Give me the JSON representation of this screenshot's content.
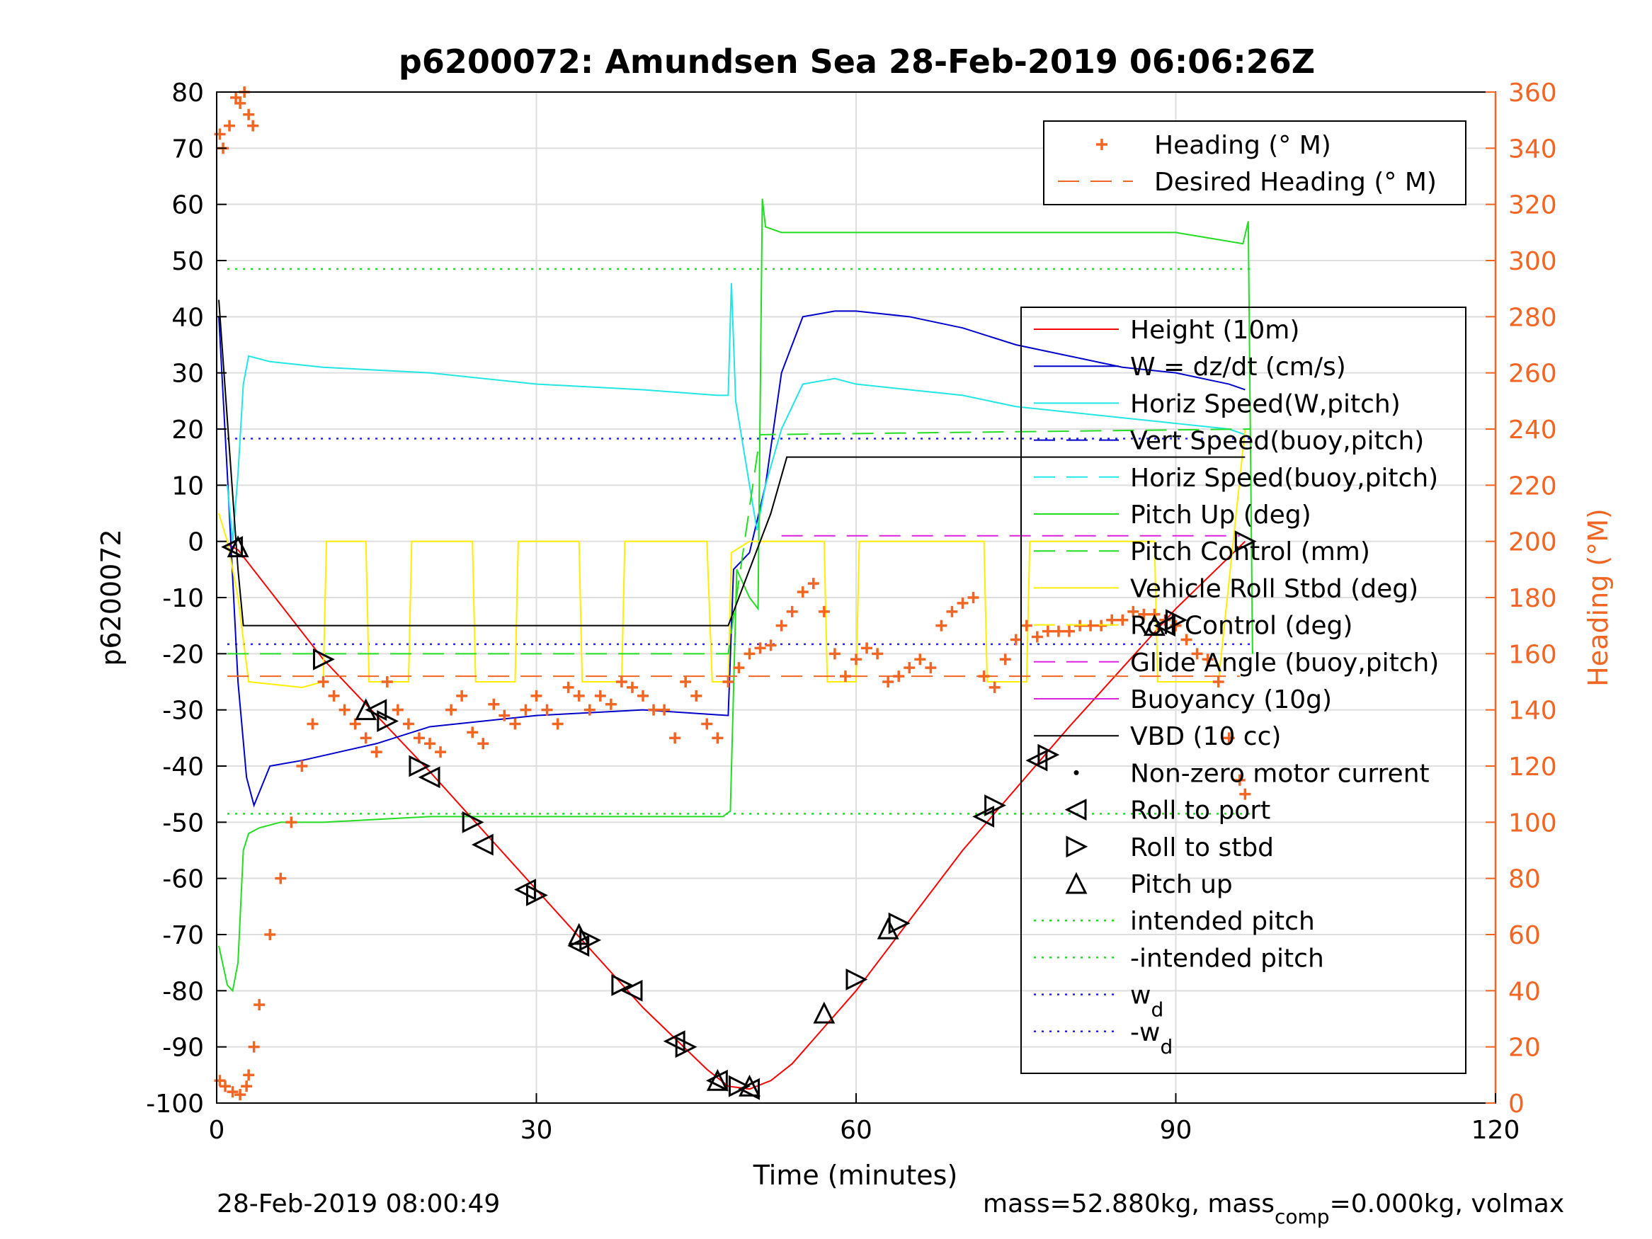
{
  "chart_data": {
    "type": "line",
    "title": "p6200072: Amundsen Sea 28-Feb-2019 06:06:26Z",
    "xlabel": "Time (minutes)",
    "ylabel": "p6200072",
    "y2label": "Heading (°M)",
    "xlim": [
      0,
      120
    ],
    "ylim": [
      -100,
      80
    ],
    "y2lim": [
      0,
      360
    ],
    "x_ticks": [
      0,
      30,
      60,
      90,
      120
    ],
    "y_ticks": [
      80,
      70,
      60,
      50,
      40,
      30,
      20,
      10,
      0,
      -10,
      -20,
      -30,
      -40,
      -50,
      -60,
      -70,
      -80,
      -90,
      -100
    ],
    "y2_ticks": [
      360,
      340,
      320,
      300,
      280,
      260,
      240,
      220,
      200,
      180,
      160,
      140,
      120,
      100,
      80,
      60,
      40,
      20,
      0
    ],
    "grid": true,
    "footer_left": "28-Feb-2019 08:00:49",
    "footer_right_a": "mass=52.880kg, mass",
    "footer_right_sub": "comp",
    "footer_right_b": "=0.000kg, volmax",
    "legend_top": [
      {
        "name": "Heading (° M)",
        "color": "#f26522",
        "style": "plus"
      },
      {
        "name": "Desired Heading (° M)",
        "color": "#f26522",
        "style": "dashed"
      }
    ],
    "legend_main": [
      {
        "name": "Height (10m)",
        "color": "#ff0000",
        "style": "solid"
      },
      {
        "name": "W = dz/dt (cm/s)",
        "color": "#0000cc",
        "style": "solid"
      },
      {
        "name": "Horiz Speed(W,pitch)",
        "color": "#22e5e5",
        "style": "solid"
      },
      {
        "name": "Vert Speed(buoy,pitch)",
        "color": "#0000cc",
        "style": "dashed"
      },
      {
        "name": "Horiz Speed(buoy,pitch)",
        "color": "#22e5e5",
        "style": "dashed"
      },
      {
        "name": "Pitch Up (deg)",
        "color": "#22dd22",
        "style": "solid"
      },
      {
        "name": "Pitch Control (mm)",
        "color": "#22dd22",
        "style": "dashed"
      },
      {
        "name": "Vehicle Roll Stbd (deg)",
        "color": "#ffee00",
        "style": "solid"
      },
      {
        "name": "Roll Control (deg)",
        "color": "#ffee00",
        "style": "dashed"
      },
      {
        "name": "Glide Angle (buoy,pitch)",
        "color": "#dd22dd",
        "style": "dashed"
      },
      {
        "name": "Buoyancy (10g)",
        "color": "#dd22dd",
        "style": "solid"
      },
      {
        "name": "VBD (10 cc)",
        "color": "#000000",
        "style": "solid"
      },
      {
        "name": "Non-zero motor current",
        "color": "#000000",
        "style": "dot"
      },
      {
        "name": "Roll to port",
        "color": "#000000",
        "style": "tri-left"
      },
      {
        "name": "Roll to stbd",
        "color": "#000000",
        "style": "tri-right"
      },
      {
        "name": "Pitch up",
        "color": "#000000",
        "style": "tri-up"
      },
      {
        "name": "intended pitch",
        "color": "#22dd22",
        "style": "dotted"
      },
      {
        "name": "-intended pitch",
        "color": "#22dd22",
        "style": "dotted"
      },
      {
        "name": "w",
        "sub": "d",
        "color": "#2222ee",
        "style": "dotted"
      },
      {
        "name": "-w",
        "sub": "d",
        "color": "#2222ee",
        "style": "dotted"
      }
    ],
    "reference_lines": [
      {
        "name": "intended pitch",
        "y": 48.5,
        "color": "#22dd22"
      },
      {
        "name": "-intended pitch",
        "y": -48.5,
        "color": "#22dd22"
      },
      {
        "name": "w_d",
        "y": 18.3,
        "color": "#2222ee"
      },
      {
        "name": "-w_d",
        "y": -18.3,
        "color": "#2222ee"
      }
    ],
    "series": [
      {
        "name": "Height (10m)",
        "color": "#ff0000",
        "x": [
          1,
          2,
          10,
          20,
          30,
          40,
          46,
          48,
          50,
          52,
          54,
          60,
          70,
          80,
          90,
          96.5
        ],
        "y": [
          -0.5,
          -1.5,
          -21,
          -41,
          -62,
          -83,
          -94,
          -97,
          -97.5,
          -96,
          -93,
          -80,
          -55,
          -33,
          -12,
          0
        ]
      },
      {
        "name": "W = dz/dt (cm/s)",
        "color": "#0000cc",
        "x": [
          0.2,
          1,
          2,
          2.8,
          3.5,
          5,
          8,
          15,
          20,
          30,
          40,
          48,
          48.5,
          50,
          51.5,
          53,
          55,
          58,
          60,
          65,
          70,
          75,
          80,
          85,
          90,
          95,
          96.5
        ],
        "y": [
          40,
          12,
          -25,
          -42,
          -47,
          -40,
          -39,
          -36,
          -33,
          -31,
          -30,
          -31,
          -5,
          -2,
          10,
          30,
          40,
          41,
          41,
          40,
          38,
          35,
          33,
          31,
          30,
          28,
          27
        ]
      },
      {
        "name": "Horiz Speed(W,pitch)",
        "color": "#22e5e5",
        "x": [
          1,
          1.5,
          2,
          2.5,
          3,
          5,
          10,
          20,
          30,
          40,
          47,
          48,
          48.3,
          48.7,
          50,
          50.7,
          51.5,
          53,
          55,
          58,
          60,
          65,
          70,
          75,
          80,
          85,
          90,
          95,
          96.5
        ],
        "y": [
          10,
          0,
          12,
          28,
          33,
          32,
          31,
          30,
          28,
          27,
          26,
          26,
          46,
          25,
          10,
          2,
          10,
          20,
          28,
          29,
          28,
          27,
          26,
          24,
          23,
          22,
          21,
          20,
          19
        ]
      },
      {
        "name": "Pitch Up (deg)",
        "color": "#22dd22",
        "x": [
          0.2,
          1,
          1.5,
          2,
          2.5,
          3,
          4,
          6,
          10,
          20,
          30,
          40,
          47.5,
          48.2,
          48.8,
          50,
          50.8,
          51.2,
          51.5,
          53,
          55,
          60,
          70,
          80,
          90,
          96.3,
          96.8,
          97.2
        ],
        "y": [
          -72,
          -79,
          -80,
          -75,
          -55,
          -52,
          -51,
          -50,
          -50,
          -49,
          -49,
          -49,
          -49,
          -48,
          -5,
          -10,
          -12,
          61,
          56,
          55,
          55,
          55,
          55,
          55,
          55,
          53,
          57,
          -20
        ]
      },
      {
        "name": "Vehicle Roll Stbd (deg)",
        "color": "#ffee00",
        "x": [
          0.2,
          1,
          2,
          3,
          8,
          10,
          10.3,
          14,
          14.3,
          18,
          18.3,
          24,
          24.3,
          28,
          28.3,
          34,
          34.3,
          38,
          38.3,
          46,
          46.5,
          48,
          48.3,
          50,
          55,
          57,
          57.3,
          60,
          60.3,
          70,
          72,
          72.3,
          76,
          76.3,
          88,
          88.3,
          94,
          96.5
        ],
        "y": [
          5,
          0,
          -10,
          -25,
          -26,
          -25,
          0,
          0,
          -25,
          -25,
          0,
          0,
          -25,
          -25,
          0,
          0,
          -25,
          -25,
          0,
          0,
          -25,
          -25,
          -2,
          0,
          0,
          0,
          -25,
          -25,
          0,
          0,
          0,
          -25,
          -25,
          0,
          0,
          -25,
          -25,
          20
        ]
      },
      {
        "name": "VBD (10 cc)",
        "color": "#000000",
        "x": [
          0.2,
          2,
          2.5,
          20,
          40,
          48,
          50,
          51,
          52,
          53.5,
          60,
          70,
          80,
          90,
          96.5
        ],
        "y": [
          43,
          -5,
          -15,
          -15,
          -15,
          -15,
          -5,
          0,
          5,
          15,
          15,
          15,
          15,
          15,
          15
        ]
      },
      {
        "name": "Pitch Control (mm)",
        "color": "#22dd22",
        "style": "dashed",
        "x": [
          1,
          48,
          51,
          97
        ],
        "y": [
          -20,
          -20,
          19,
          20
        ]
      },
      {
        "name": "Glide Angle (buoy,pitch)",
        "color": "#dd22dd",
        "style": "dashed",
        "x": [
          53,
          96
        ],
        "y": [
          1,
          1
        ]
      },
      {
        "name": "Desired Heading (° M)",
        "color": "#f26522",
        "style": "dashed",
        "axis": "right",
        "x": [
          1,
          96
        ],
        "y": [
          152,
          152
        ]
      },
      {
        "name": "Heading (° M)",
        "color": "#f26522",
        "style": "plus",
        "axis": "right",
        "x": [
          0.3,
          0.8,
          1.5,
          2.2,
          2.8,
          3,
          3.5,
          4,
          5,
          6,
          7,
          8,
          9,
          10,
          11,
          12,
          13,
          14,
          15,
          16,
          17,
          18,
          19,
          20,
          21,
          22,
          23,
          24,
          25,
          26,
          27,
          28,
          29,
          30,
          31,
          32,
          33,
          34,
          35,
          36,
          37,
          38,
          39,
          40,
          41,
          42,
          43,
          44,
          45,
          46,
          47,
          48,
          49,
          50,
          51,
          52,
          53,
          54,
          55,
          56,
          57,
          58,
          59,
          60,
          61,
          62,
          63,
          64,
          65,
          66,
          67,
          68,
          69,
          70,
          71,
          72,
          73,
          74,
          75,
          76,
          77,
          78,
          79,
          80,
          81,
          82,
          83,
          84,
          85,
          86,
          87,
          88,
          89,
          90,
          91,
          92,
          93,
          94,
          95,
          96,
          96.5
        ],
        "y": [
          8,
          6,
          4,
          3,
          6,
          10,
          20,
          35,
          60,
          80,
          100,
          120,
          135,
          150,
          145,
          140,
          135,
          130,
          125,
          150,
          140,
          135,
          130,
          128,
          125,
          140,
          145,
          132,
          128,
          142,
          138,
          135,
          140,
          145,
          140,
          135,
          148,
          145,
          140,
          145,
          142,
          150,
          148,
          145,
          140,
          140,
          130,
          150,
          145,
          135,
          130,
          150,
          155,
          160,
          162,
          163,
          170,
          175,
          182,
          185,
          175,
          160,
          152,
          158,
          162,
          160,
          150,
          152,
          155,
          158,
          155,
          170,
          175,
          178,
          180,
          152,
          148,
          158,
          165,
          170,
          166,
          168,
          168,
          168,
          170,
          170,
          170,
          172,
          172,
          175,
          174,
          174,
          172,
          170,
          165,
          160,
          158,
          150,
          130,
          115,
          110
        ]
      },
      {
        "name": "Heading (° M) start",
        "color": "#f26522",
        "style": "plus",
        "axis": "right",
        "x": [
          0.3,
          0.6,
          1.2,
          1.8,
          2.2,
          2.6,
          3.0,
          3.4
        ],
        "y": [
          345,
          340,
          348,
          358,
          356,
          360,
          352,
          348
        ]
      }
    ],
    "markers": {
      "roll_to_port": {
        "x": [
          1.5,
          15,
          20,
          25,
          29,
          34,
          39,
          43,
          47,
          50,
          72,
          77,
          89
        ],
        "y": [
          -1,
          -30,
          -42,
          -54,
          -62,
          -72,
          -80,
          -89,
          -96,
          -97.5,
          -49,
          -39,
          -15
        ]
      },
      "roll_to_stbd": {
        "x": [
          10,
          16,
          19,
          24,
          30,
          35,
          38,
          44,
          49,
          60,
          64,
          73,
          78,
          90,
          96.5
        ],
        "y": [
          -21,
          -32,
          -40,
          -50,
          -63,
          -71,
          -79,
          -90,
          -97,
          -78,
          -68,
          -47,
          -38,
          -14,
          0
        ]
      },
      "pitch_up": {
        "x": [
          2,
          14,
          34,
          47,
          50,
          57,
          63,
          88
        ],
        "y": [
          -1,
          -30,
          -70,
          -96,
          -97,
          -84,
          -69,
          -15
        ]
      }
    }
  }
}
